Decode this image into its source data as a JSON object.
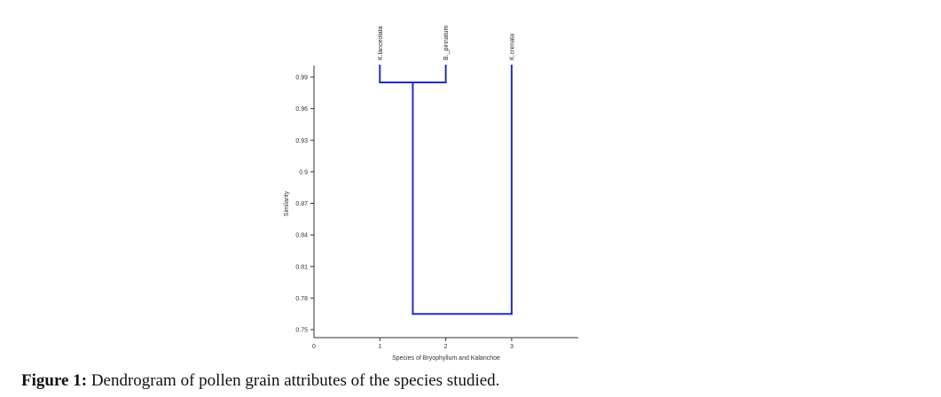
{
  "chart_data": {
    "type": "dendrogram",
    "ylabel": "Similarity",
    "xlabel": "Species of Bryophyllum and Kalanchoe",
    "y_ticks": [
      "0.99",
      "0.96",
      "0.93",
      "0.9",
      "0.87",
      "0.84",
      "0.81",
      "0.78",
      "0.75"
    ],
    "y_tick_values": [
      0.99,
      0.96,
      0.93,
      0.9,
      0.87,
      0.84,
      0.81,
      0.78,
      0.75
    ],
    "ylim": [
      0.75,
      1.0
    ],
    "x_ticks": [
      "0",
      "1",
      "2",
      "3"
    ],
    "x_tick_values": [
      0,
      1,
      2,
      3
    ],
    "xlim": [
      0,
      4
    ],
    "leaves": [
      {
        "label": "K.lanceolata",
        "x": 1
      },
      {
        "label": "B._pinnatum",
        "x": 2
      },
      {
        "label": "K.crenata",
        "x": 3
      }
    ],
    "merges": [
      {
        "left_x": 1,
        "right_x": 2,
        "similarity": 0.985,
        "node_x": 1.5
      },
      {
        "left_x": 1.5,
        "right_x": 3,
        "similarity": 0.765,
        "node_x": 2.25
      }
    ],
    "line_color": "#1f2fbf",
    "grid": false
  },
  "caption": {
    "label": "Figure 1:",
    "text": " Dendrogram of pollen grain attributes of the species studied."
  }
}
